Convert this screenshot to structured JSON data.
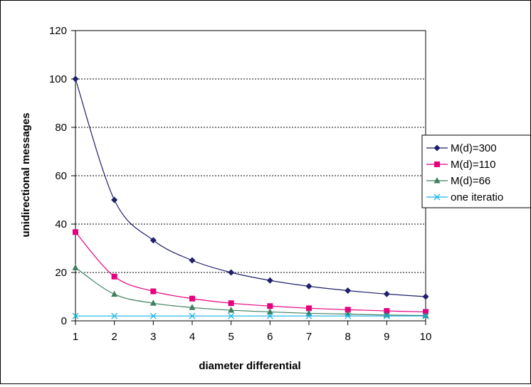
{
  "chart_data": {
    "type": "line",
    "title": "",
    "xlabel": "diameter differential",
    "ylabel": "unidirectional messages",
    "x": [
      1,
      2,
      3,
      4,
      5,
      6,
      7,
      8,
      9,
      10
    ],
    "xlim": [
      1,
      10
    ],
    "ylim": [
      0,
      120
    ],
    "yticks": [
      0,
      20,
      40,
      60,
      80,
      100,
      120
    ],
    "grid": "horizontal dotted",
    "legend": "right",
    "series": [
      {
        "name": "M(d)=300",
        "values": [
          100,
          50,
          33.3,
          25,
          20,
          16.7,
          14.3,
          12.5,
          11.1,
          10
        ],
        "color": "#1f1f6b",
        "marker": "diamond"
      },
      {
        "name": "M(d)=110",
        "values": [
          36.7,
          18.3,
          12.2,
          9.2,
          7.3,
          6.1,
          5.2,
          4.6,
          4.1,
          3.7
        ],
        "color": "#e6007e",
        "marker": "square"
      },
      {
        "name": "M(d)=66",
        "values": [
          22,
          11,
          7.3,
          5.5,
          4.4,
          3.7,
          3.1,
          2.8,
          2.4,
          2.2
        ],
        "color": "#3f7f5f",
        "marker": "triangle"
      },
      {
        "name": "one iteratio",
        "values": [
          2,
          2,
          2,
          2,
          2,
          2,
          2,
          2,
          2,
          2
        ],
        "color": "#19b3e6",
        "marker": "x"
      }
    ]
  }
}
